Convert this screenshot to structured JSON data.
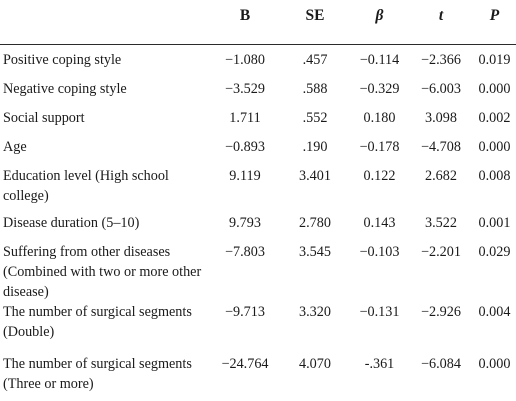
{
  "headers": [
    "",
    "B",
    "SE",
    "β",
    "t",
    "P"
  ],
  "rows": [
    {
      "variable": "Positive coping style",
      "B": "−1.080",
      "SE": ".457",
      "beta": "−0.114",
      "t": "−2.366",
      "P": "0.019"
    },
    {
      "variable": "Negative coping style",
      "B": "−3.529",
      "SE": ".588",
      "beta": "−0.329",
      "t": "−6.003",
      "P": "0.000"
    },
    {
      "variable": "Social support",
      "B": "1.711",
      "SE": ".552",
      "beta": "0.180",
      "t": "3.098",
      "P": "0.002"
    },
    {
      "variable": "Age",
      "B": "−0.893",
      "SE": ".190",
      "beta": "−0.178",
      "t": "−4.708",
      "P": "0.000"
    },
    {
      "variable": "Education level (High school college)",
      "B": "9.119",
      "SE": "3.401",
      "beta": "0.122",
      "t": "2.682",
      "P": "0.008"
    },
    {
      "variable": "Disease duration (5–10)",
      "B": "9.793",
      "SE": "2.780",
      "beta": "0.143",
      "t": "3.522",
      "P": "0.001"
    },
    {
      "variable": "Suffering from other diseases (Combined with two or more other disease)",
      "B": "−7.803",
      "SE": "3.545",
      "beta": "−0.103",
      "t": "−2.201",
      "P": "0.029"
    },
    {
      "variable": "The number of surgical segments (Double)",
      "B": "−9.713",
      "SE": "3.320",
      "beta": "−0.131",
      "t": "−2.926",
      "P": "0.004"
    },
    {
      "variable": "The number of surgical segments (Three or more)",
      "B": "−24.764",
      "SE": "4.070",
      "beta": "-.361",
      "t": "−6.084",
      "P": "0.000"
    }
  ]
}
